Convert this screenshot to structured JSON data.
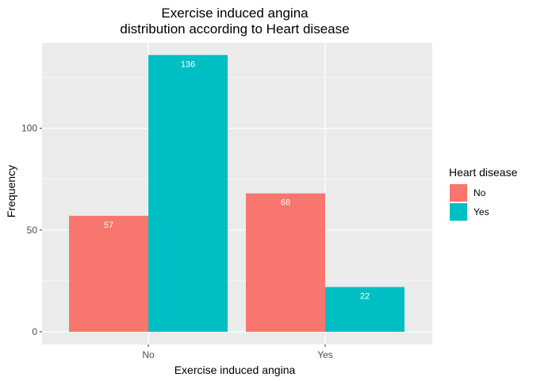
{
  "chart_data": {
    "type": "bar",
    "title": "Exercise induced angina",
    "subtitle": "distribution according to Heart disease",
    "xlabel": "Exercise induced angina",
    "ylabel": "Frequency",
    "categories": [
      "No",
      "Yes"
    ],
    "series": [
      {
        "name": "No",
        "color": "#F8766D",
        "values": [
          57,
          68
        ]
      },
      {
        "name": "Yes",
        "color": "#00BFC4",
        "values": [
          136,
          22
        ]
      }
    ],
    "ylim": [
      0,
      143
    ],
    "yticks": [
      0,
      50,
      100
    ],
    "grid": true,
    "legend": {
      "title": "Heart disease",
      "position": "right"
    },
    "panel_background": "#EBEBEB",
    "grid_color": "#FFFFFF"
  }
}
